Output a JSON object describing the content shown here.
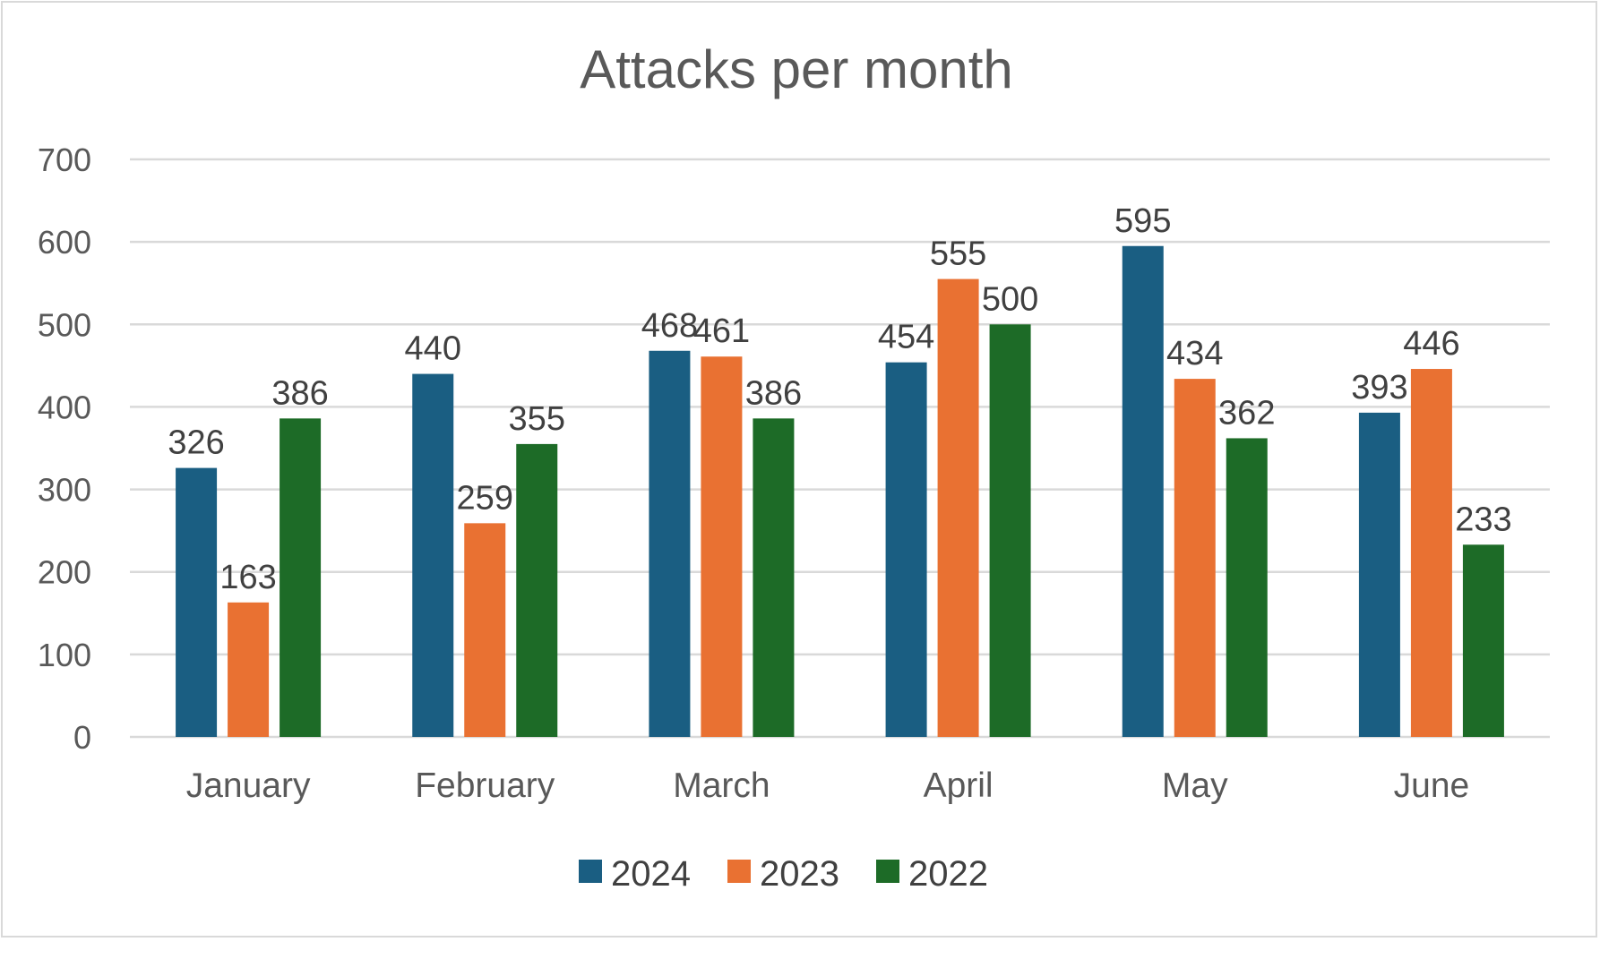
{
  "chart_data": {
    "type": "bar",
    "title": "Attacks per month",
    "xlabel": "",
    "ylabel": "",
    "categories": [
      "January",
      "February",
      "March",
      "April",
      "May",
      "June"
    ],
    "series": [
      {
        "name": "2024",
        "color": "#1a5e82",
        "values": [
          326,
          440,
          468,
          454,
          595,
          393
        ]
      },
      {
        "name": "2023",
        "color": "#e97132",
        "values": [
          163,
          259,
          461,
          555,
          434,
          446
        ]
      },
      {
        "name": "2022",
        "color": "#1d6b27",
        "values": [
          386,
          355,
          386,
          500,
          362,
          233
        ]
      }
    ],
    "ylim": [
      0,
      700
    ],
    "yticks": [
      0,
      100,
      200,
      300,
      400,
      500,
      600,
      700
    ],
    "grid": true,
    "legend": "bottom"
  }
}
